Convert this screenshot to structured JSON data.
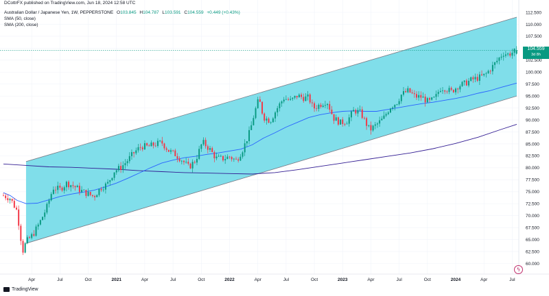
{
  "header": {
    "publisher": "DCottrFX published on TradingView.com, Jun 18, 2024 12:58 UTC",
    "symbol": "Australian Dollar / Japanese Yen, 1W, PEPPERSTONE",
    "open_key": "O",
    "open": "103.845",
    "high_key": "H",
    "high": "104.787",
    "low_key": "L",
    "low": "103.591",
    "close_key": "C",
    "close": "104.559",
    "change": "+0.449 (+0.43%)",
    "sma50_label": "SMA (50, close)",
    "sma200_label": "SMA (200, close)"
  },
  "price_badge": {
    "price": "104.559",
    "countdown": "3d 8h"
  },
  "footer": {
    "logo_text": "TradingView"
  },
  "colors": {
    "up": "#089981",
    "down": "#f23645",
    "channel_fill": "#80deea",
    "channel_line": "#787b86",
    "sma50": "#2962ff",
    "sma200": "#311b92",
    "last_price_line": "#089981"
  },
  "chart_data": {
    "type": "candlestick",
    "y_axis": {
      "min": 60,
      "max": 112.5,
      "ticks": [
        "112.500",
        "110.000",
        "107.500",
        "105.000",
        "102.500",
        "100.000",
        "97.500",
        "95.000",
        "92.500",
        "90.000",
        "87.500",
        "85.000",
        "82.500",
        "80.000",
        "77.500",
        "75.000",
        "72.500",
        "70.000",
        "67.500",
        "65.000",
        "62.500",
        "60.000"
      ]
    },
    "x_axis": {
      "start": 2020.0,
      "end": 2024.54,
      "ticks": [
        {
          "label": "Apr",
          "t": 2020.25
        },
        {
          "label": "Jul",
          "t": 2020.5
        },
        {
          "label": "Oct",
          "t": 2020.75
        },
        {
          "label": "2021",
          "t": 2021.0
        },
        {
          "label": "Apr",
          "t": 2021.25
        },
        {
          "label": "Jul",
          "t": 2021.5
        },
        {
          "label": "Oct",
          "t": 2021.75
        },
        {
          "label": "2022",
          "t": 2022.0
        },
        {
          "label": "Apr",
          "t": 2022.25
        },
        {
          "label": "Jul",
          "t": 2022.5
        },
        {
          "label": "Oct",
          "t": 2022.75
        },
        {
          "label": "2023",
          "t": 2023.0
        },
        {
          "label": "Apr",
          "t": 2023.25
        },
        {
          "label": "Jul",
          "t": 2023.5
        },
        {
          "label": "Oct",
          "t": 2023.75
        },
        {
          "label": "2024",
          "t": 2024.0
        },
        {
          "label": "Apr",
          "t": 2024.25
        },
        {
          "label": "Jul",
          "t": 2024.5
        }
      ]
    },
    "last_price": 104.559,
    "close_path": [
      [
        2020.0,
        74.2
      ],
      [
        2020.06,
        73.6
      ],
      [
        2020.12,
        71.0
      ],
      [
        2020.17,
        62.5
      ],
      [
        2020.2,
        64.5
      ],
      [
        2020.26,
        66.0
      ],
      [
        2020.32,
        68.5
      ],
      [
        2020.38,
        71.5
      ],
      [
        2020.44,
        75.8
      ],
      [
        2020.5,
        75.5
      ],
      [
        2020.56,
        76.8
      ],
      [
        2020.62,
        76.2
      ],
      [
        2020.68,
        75.3
      ],
      [
        2020.74,
        74.6
      ],
      [
        2020.8,
        74.0
      ],
      [
        2020.86,
        75.8
      ],
      [
        2020.92,
        76.6
      ],
      [
        2020.98,
        79.3
      ],
      [
        2021.04,
        80.1
      ],
      [
        2021.1,
        81.6
      ],
      [
        2021.16,
        83.3
      ],
      [
        2021.22,
        84.5
      ],
      [
        2021.28,
        84.4
      ],
      [
        2021.34,
        84.9
      ],
      [
        2021.4,
        85.3
      ],
      [
        2021.46,
        83.6
      ],
      [
        2021.52,
        82.8
      ],
      [
        2021.58,
        81.6
      ],
      [
        2021.64,
        80.1
      ],
      [
        2021.7,
        81.6
      ],
      [
        2021.76,
        85.4
      ],
      [
        2021.82,
        84.0
      ],
      [
        2021.88,
        82.0
      ],
      [
        2021.94,
        81.9
      ],
      [
        2022.0,
        82.3
      ],
      [
        2022.06,
        81.5
      ],
      [
        2022.12,
        84.0
      ],
      [
        2022.18,
        87.6
      ],
      [
        2022.22,
        91.5
      ],
      [
        2022.26,
        94.4
      ],
      [
        2022.3,
        90.6
      ],
      [
        2022.36,
        89.8
      ],
      [
        2022.42,
        92.4
      ],
      [
        2022.48,
        94.6
      ],
      [
        2022.54,
        94.0
      ],
      [
        2022.6,
        95.1
      ],
      [
        2022.66,
        94.6
      ],
      [
        2022.7,
        94.7
      ],
      [
        2022.74,
        92.4
      ],
      [
        2022.8,
        93.2
      ],
      [
        2022.86,
        94.0
      ],
      [
        2022.92,
        90.4
      ],
      [
        2022.98,
        89.4
      ],
      [
        2023.04,
        89.8
      ],
      [
        2023.1,
        92.0
      ],
      [
        2023.16,
        91.5
      ],
      [
        2023.2,
        89.6
      ],
      [
        2023.24,
        87.9
      ],
      [
        2023.3,
        89.0
      ],
      [
        2023.36,
        90.3
      ],
      [
        2023.42,
        92.7
      ],
      [
        2023.48,
        93.7
      ],
      [
        2023.52,
        95.3
      ],
      [
        2023.58,
        96.1
      ],
      [
        2023.64,
        94.9
      ],
      [
        2023.7,
        94.8
      ],
      [
        2023.76,
        93.7
      ],
      [
        2023.82,
        94.6
      ],
      [
        2023.86,
        96.6
      ],
      [
        2023.9,
        96.7
      ],
      [
        2023.96,
        95.9
      ],
      [
        2024.02,
        97.1
      ],
      [
        2024.08,
        97.6
      ],
      [
        2024.14,
        98.4
      ],
      [
        2024.2,
        98.8
      ],
      [
        2024.26,
        99.4
      ],
      [
        2024.32,
        101.0
      ],
      [
        2024.38,
        102.8
      ],
      [
        2024.42,
        104.0
      ],
      [
        2024.46,
        103.7
      ],
      [
        2024.5,
        104.1
      ],
      [
        2024.54,
        104.559
      ]
    ],
    "sma50": [
      [
        2020.0,
        74.8
      ],
      [
        2020.06,
        74.2
      ],
      [
        2020.12,
        73.2
      ],
      [
        2020.2,
        72.5
      ],
      [
        2020.3,
        72.6
      ],
      [
        2020.4,
        73.3
      ],
      [
        2020.5,
        74.0
      ],
      [
        2020.6,
        74.5
      ],
      [
        2020.7,
        74.9
      ],
      [
        2020.8,
        75.3
      ],
      [
        2020.9,
        76.0
      ],
      [
        2021.0,
        76.8
      ],
      [
        2021.1,
        77.8
      ],
      [
        2021.2,
        78.9
      ],
      [
        2021.3,
        80.0
      ],
      [
        2021.4,
        81.0
      ],
      [
        2021.5,
        81.6
      ],
      [
        2021.6,
        82.1
      ],
      [
        2021.7,
        82.4
      ],
      [
        2021.8,
        82.8
      ],
      [
        2021.9,
        83.1
      ],
      [
        2022.0,
        83.5
      ],
      [
        2022.1,
        83.9
      ],
      [
        2022.2,
        84.8
      ],
      [
        2022.3,
        86.2
      ],
      [
        2022.4,
        87.3
      ],
      [
        2022.5,
        88.5
      ],
      [
        2022.6,
        89.5
      ],
      [
        2022.7,
        90.5
      ],
      [
        2022.8,
        91.1
      ],
      [
        2022.9,
        91.5
      ],
      [
        2023.0,
        91.8
      ],
      [
        2023.1,
        91.9
      ],
      [
        2023.2,
        91.8
      ],
      [
        2023.3,
        91.8
      ],
      [
        2023.4,
        92.2
      ],
      [
        2023.5,
        92.6
      ],
      [
        2023.6,
        93.0
      ],
      [
        2023.7,
        93.4
      ],
      [
        2023.8,
        93.7
      ],
      [
        2023.9,
        94.1
      ],
      [
        2024.0,
        94.5
      ],
      [
        2024.1,
        95.0
      ],
      [
        2024.2,
        95.6
      ],
      [
        2024.3,
        96.1
      ],
      [
        2024.4,
        96.8
      ],
      [
        2024.54,
        97.7
      ]
    ],
    "sma200": [
      [
        2020.0,
        80.8
      ],
      [
        2020.2,
        80.5
      ],
      [
        2020.4,
        80.2
      ],
      [
        2020.6,
        80.1
      ],
      [
        2020.8,
        79.9
      ],
      [
        2021.0,
        79.7
      ],
      [
        2021.2,
        79.4
      ],
      [
        2021.4,
        79.2
      ],
      [
        2021.6,
        79.0
      ],
      [
        2021.8,
        78.9
      ],
      [
        2022.0,
        78.8
      ],
      [
        2022.2,
        78.7
      ],
      [
        2022.4,
        79.0
      ],
      [
        2022.6,
        79.6
      ],
      [
        2022.8,
        80.3
      ],
      [
        2023.0,
        81.0
      ],
      [
        2023.2,
        81.7
      ],
      [
        2023.4,
        82.4
      ],
      [
        2023.6,
        83.1
      ],
      [
        2023.8,
        84.0
      ],
      [
        2024.0,
        85.1
      ],
      [
        2024.2,
        86.4
      ],
      [
        2024.4,
        88.0
      ],
      [
        2024.54,
        89.1
      ]
    ],
    "channel": {
      "start": 2020.2,
      "end": 2024.54,
      "upper_start": 81.3,
      "upper_end": 111.5,
      "lower_start": 64.2,
      "lower_end": 95.0
    }
  }
}
